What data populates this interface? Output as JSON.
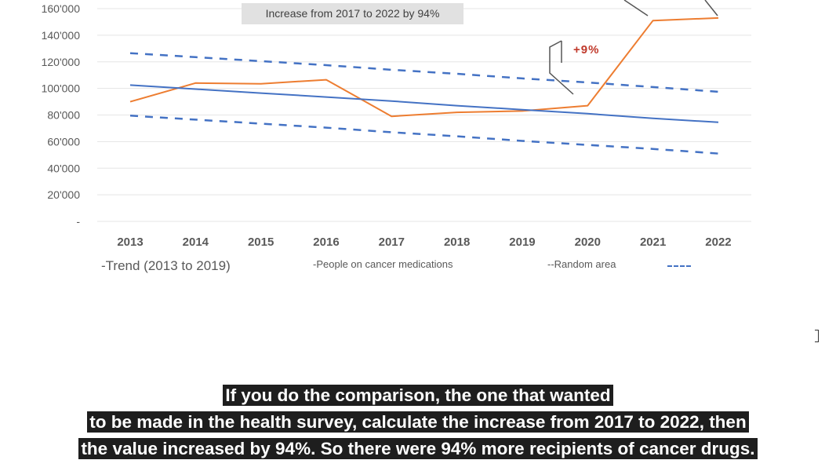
{
  "chart_data": {
    "type": "line",
    "categories": [
      "2013",
      "2014",
      "2015",
      "2016",
      "2017",
      "2018",
      "2019",
      "2020",
      "2021",
      "2022"
    ],
    "y_tick_labels": [
      "-",
      "20'000",
      "40'000",
      "60'000",
      "80'000",
      "100'000",
      "120'000",
      "140'000",
      "160'000"
    ],
    "ylim": [
      0,
      160000
    ],
    "grid": true,
    "legend_position": "bottom",
    "series": [
      {
        "name": "People on cancer medications",
        "style": "solid",
        "color": "#ed7d31",
        "values": [
          90000,
          104000,
          103500,
          106500,
          79000,
          82000,
          83000,
          87000,
          151000,
          153000
        ]
      },
      {
        "name": "Trend (2013 to 2019)",
        "style": "solid",
        "color": "#4472c4",
        "values": [
          102500,
          99500,
          96500,
          93500,
          90500,
          87000,
          84000,
          81000,
          77500,
          74500
        ]
      },
      {
        "name": "Random area upper",
        "style": "dashed",
        "color": "#4472c4",
        "values": [
          126500,
          123500,
          120500,
          117500,
          114000,
          111000,
          107500,
          104500,
          101000,
          97500
        ]
      },
      {
        "name": "Random area lower",
        "style": "dashed",
        "color": "#4472c4",
        "values": [
          79500,
          76500,
          73500,
          70500,
          67000,
          64000,
          60500,
          57500,
          54500,
          51000
        ]
      }
    ],
    "annotations": [
      "Increase from 2017 to 2022 by 94%",
      "+9%"
    ]
  },
  "legend": {
    "trend": "-Trend (2013 to 2019)",
    "people": "-People on cancer medications",
    "random": "--Random area"
  },
  "annotation_box": "Increase from 2017 to 2022 by 94%",
  "annotation_pct": "+9%",
  "colors": {
    "orange": "#ed7d31",
    "blue": "#4472c4",
    "grid": "#e5e5e5",
    "pct_red": "#c0392b"
  },
  "subtitles": [
    "If you do the comparison, the one that wanted",
    "to be made in the health survey, calculate the increase from 2017 to 2022, then",
    "the value increased by 94%. So there were 94% more recipients of cancer drugs."
  ]
}
